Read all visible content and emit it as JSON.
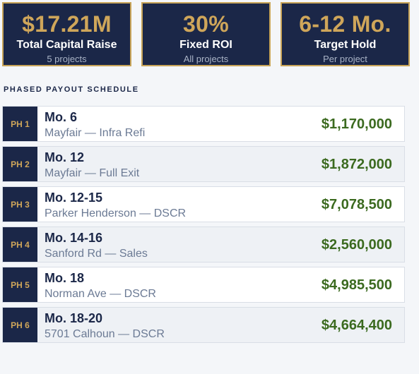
{
  "stats": [
    {
      "value": "$17.21M",
      "label": "Total Capital Raise",
      "sub": "5 projects"
    },
    {
      "value": "30%",
      "label": "Fixed ROI",
      "sub": "All projects"
    },
    {
      "value": "6-12 Mo.",
      "label": "Target Hold",
      "sub": "Per project"
    }
  ],
  "schedule": {
    "title": "PHASED PAYOUT SCHEDULE",
    "phases": [
      {
        "tag": "PH 1",
        "month": "Mo. 6",
        "desc": "Mayfair — Infra Refi",
        "amount": "$1,170,000"
      },
      {
        "tag": "PH 2",
        "month": "Mo. 12",
        "desc": "Mayfair — Full Exit",
        "amount": "$1,872,000"
      },
      {
        "tag": "PH 3",
        "month": "Mo. 12-15",
        "desc": "Parker Henderson — DSCR",
        "amount": "$7,078,500"
      },
      {
        "tag": "PH 4",
        "month": "Mo. 14-16",
        "desc": "Sanford Rd — Sales",
        "amount": "$2,560,000"
      },
      {
        "tag": "PH 5",
        "month": "Mo. 18",
        "desc": "Norman Ave — DSCR",
        "amount": "$4,985,500"
      },
      {
        "tag": "PH 6",
        "month": "Mo. 18-20",
        "desc": "5701 Calhoun — DSCR",
        "amount": "$4,664,400"
      }
    ]
  },
  "colors": {
    "navy": "#1b2748",
    "gold": "#cfa65a",
    "amount_green": "#3b6a1f"
  }
}
